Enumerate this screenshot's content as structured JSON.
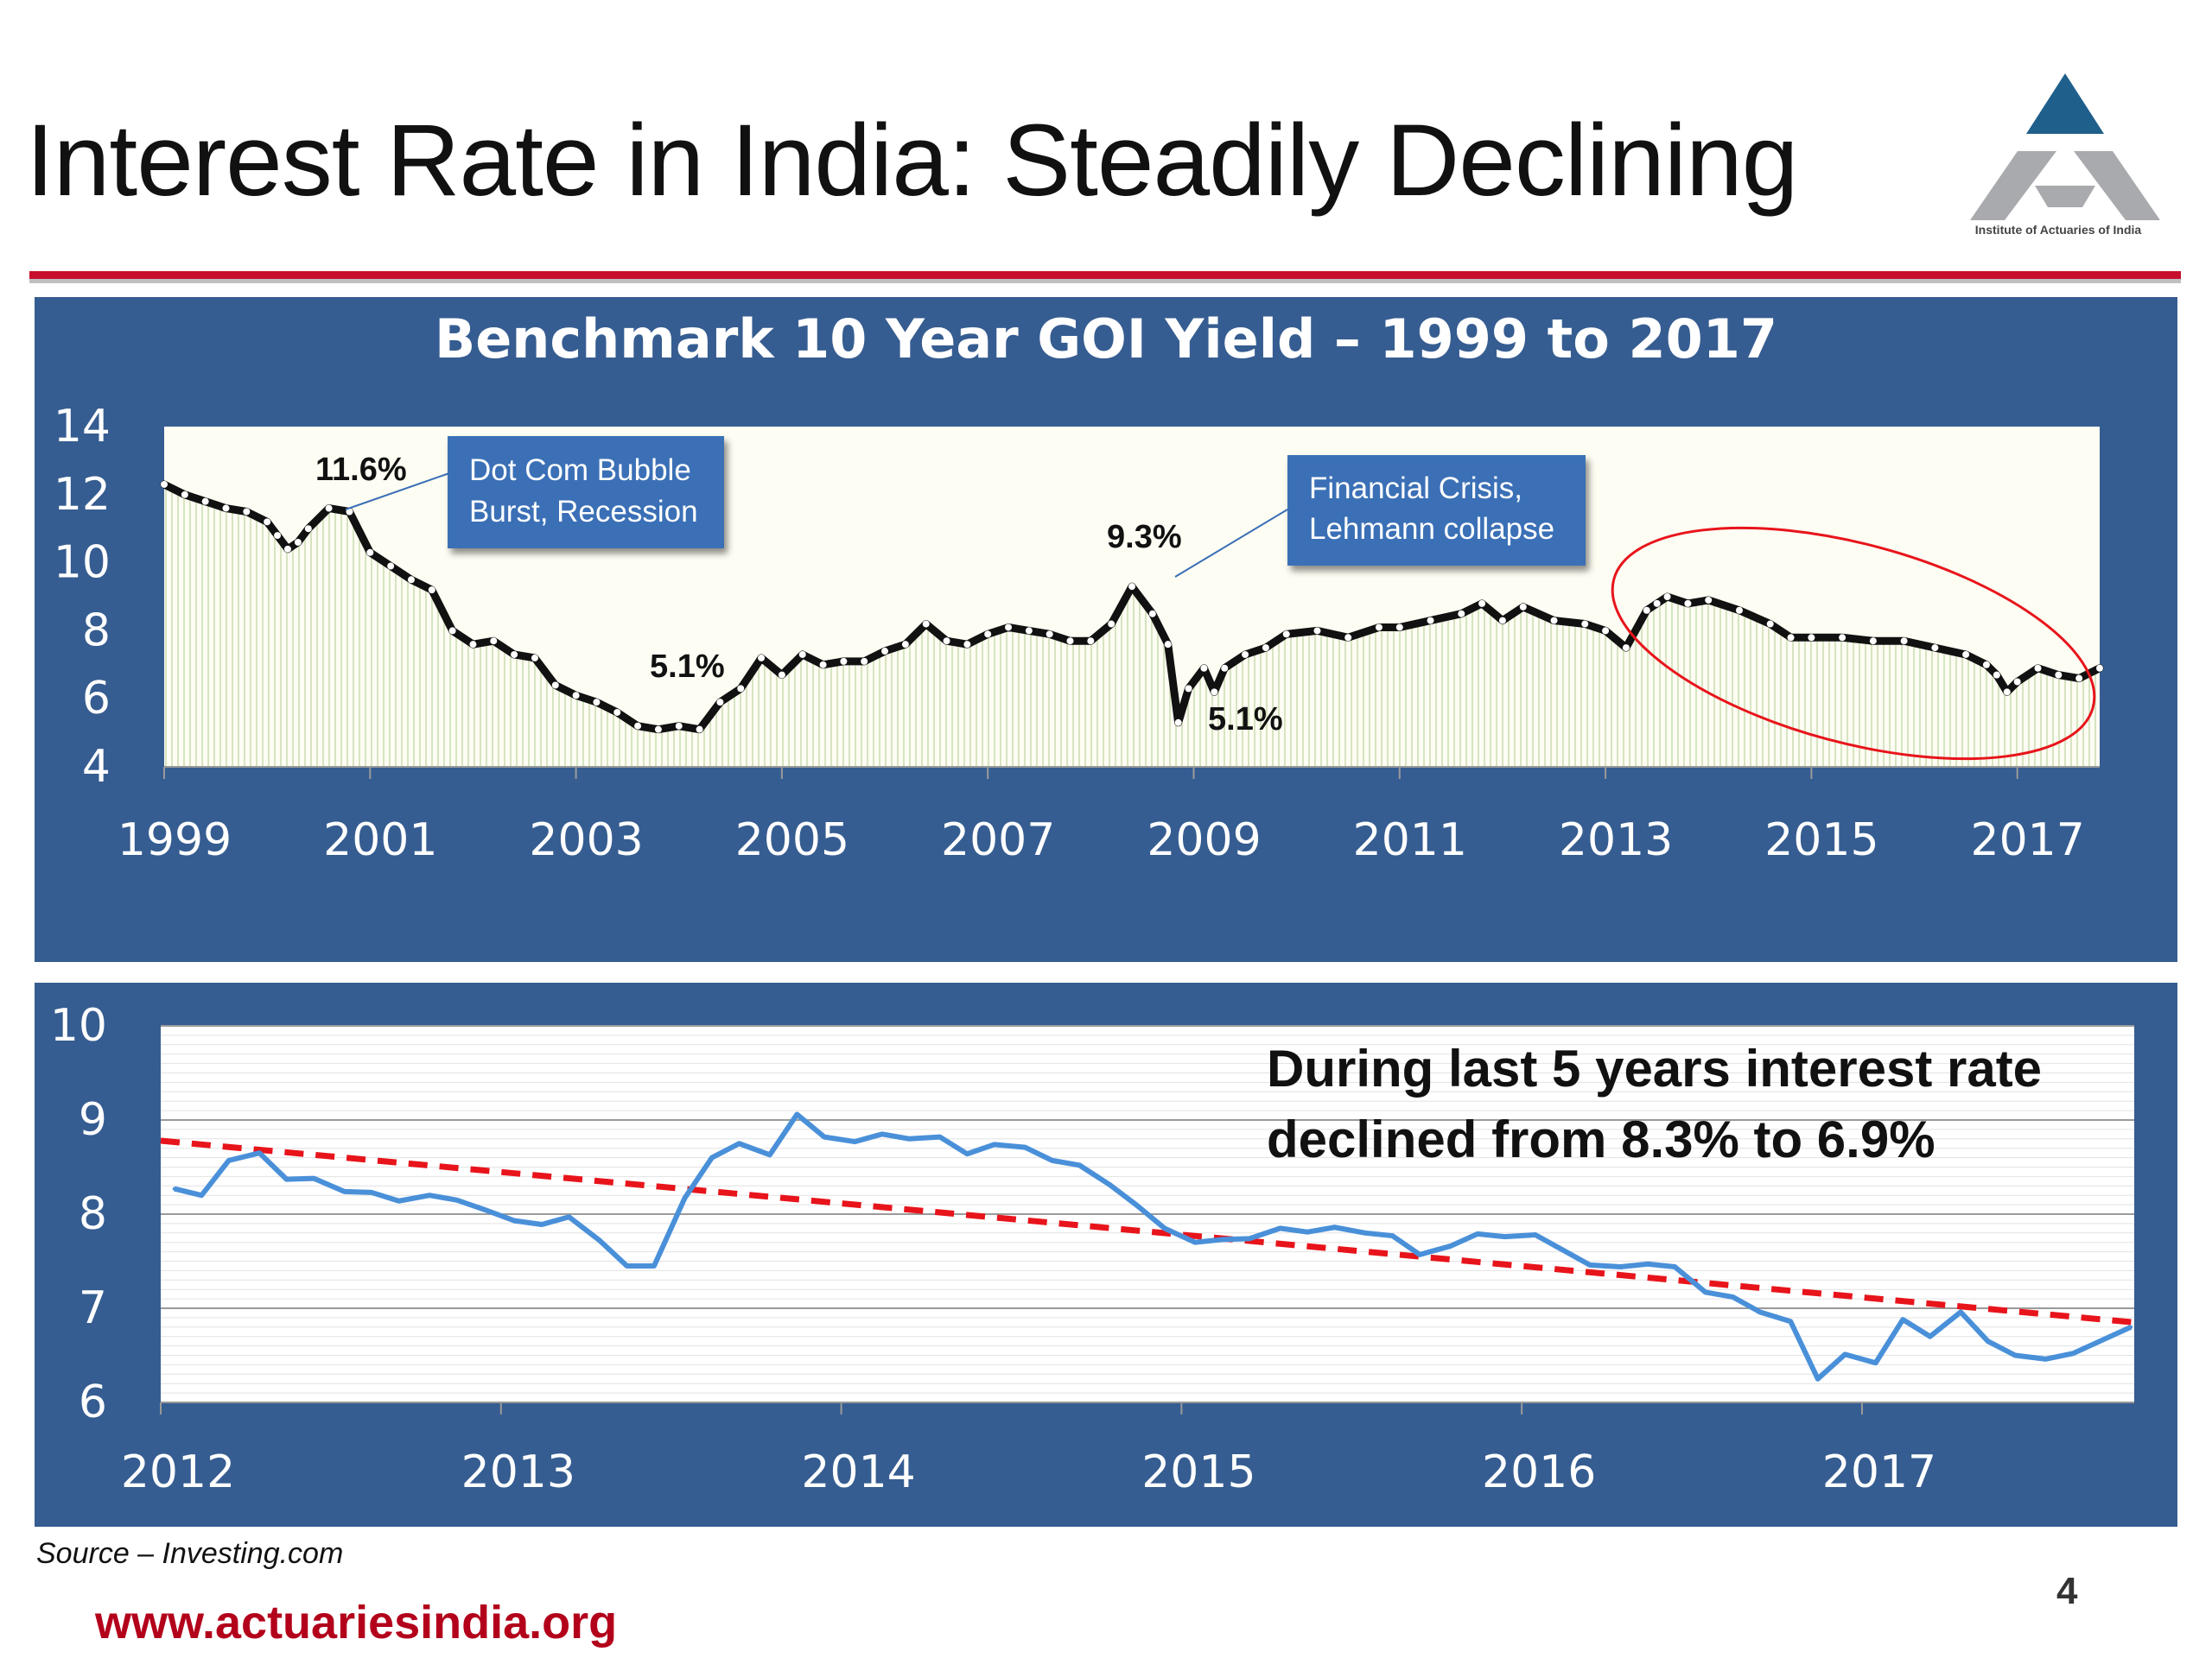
{
  "slide": {
    "title": "Interest Rate in India: Steadily Declining",
    "logo_text": "Institute of Actuaries of India",
    "source": "Source – Investing.com",
    "url": "www.actuariesindia.org",
    "page_number": "4"
  },
  "colors": {
    "panel": "#365d91",
    "rule": "#c8102e",
    "line_blue": "#4a90d9",
    "trend_red": "#e8141b",
    "callout": "#3b6fb6",
    "url_red": "#b3001b"
  },
  "chart_data": [
    {
      "type": "area",
      "title": "Benchmark 10 Year GOI Yield – 1999 to 2017",
      "xlim": [
        1999,
        2017.8
      ],
      "ylim": [
        4,
        14
      ],
      "yticks": [
        4,
        6,
        8,
        10,
        12,
        14
      ],
      "xticks": [
        1999,
        2001,
        2003,
        2005,
        2007,
        2009,
        2011,
        2013,
        2015,
        2017
      ],
      "grid": false,
      "x": [
        1999.0,
        1999.2,
        1999.4,
        1999.6,
        1999.8,
        2000.0,
        2000.1,
        2000.2,
        2000.3,
        2000.4,
        2000.6,
        2000.8,
        2001.0,
        2001.2,
        2001.4,
        2001.6,
        2001.8,
        2002.0,
        2002.2,
        2002.4,
        2002.6,
        2002.8,
        2003.0,
        2003.2,
        2003.4,
        2003.6,
        2003.8,
        2004.0,
        2004.2,
        2004.4,
        2004.6,
        2004.8,
        2005.0,
        2005.2,
        2005.4,
        2005.6,
        2005.8,
        2006.0,
        2006.2,
        2006.4,
        2006.6,
        2006.8,
        2007.0,
        2007.2,
        2007.4,
        2007.6,
        2007.8,
        2008.0,
        2008.2,
        2008.4,
        2008.6,
        2008.75,
        2008.85,
        2008.95,
        2009.1,
        2009.2,
        2009.3,
        2009.5,
        2009.7,
        2009.9,
        2010.2,
        2010.5,
        2010.8,
        2011.0,
        2011.3,
        2011.6,
        2011.8,
        2012.0,
        2012.2,
        2012.5,
        2012.8,
        2013.0,
        2013.2,
        2013.4,
        2013.5,
        2013.6,
        2013.8,
        2014.0,
        2014.3,
        2014.6,
        2014.8,
        2015.0,
        2015.3,
        2015.6,
        2015.9,
        2016.2,
        2016.5,
        2016.7,
        2016.8,
        2016.9,
        2017.0,
        2017.2,
        2017.4,
        2017.6,
        2017.8
      ],
      "y": [
        12.3,
        12.0,
        11.8,
        11.6,
        11.5,
        11.2,
        10.8,
        10.4,
        10.6,
        11.0,
        11.6,
        11.5,
        10.3,
        9.9,
        9.5,
        9.2,
        8.0,
        7.6,
        7.7,
        7.3,
        7.2,
        6.4,
        6.1,
        5.9,
        5.6,
        5.2,
        5.1,
        5.2,
        5.1,
        5.9,
        6.3,
        7.2,
        6.7,
        7.3,
        7.0,
        7.1,
        7.1,
        7.4,
        7.6,
        8.2,
        7.7,
        7.6,
        7.9,
        8.1,
        8.0,
        7.9,
        7.7,
        7.7,
        8.2,
        9.3,
        8.5,
        7.6,
        5.3,
        6.3,
        6.9,
        6.2,
        6.9,
        7.3,
        7.5,
        7.9,
        8.0,
        7.8,
        8.1,
        8.1,
        8.3,
        8.5,
        8.8,
        8.3,
        8.7,
        8.3,
        8.2,
        8.0,
        7.5,
        8.6,
        8.8,
        9.0,
        8.8,
        8.9,
        8.6,
        8.2,
        7.8,
        7.8,
        7.8,
        7.7,
        7.7,
        7.5,
        7.3,
        7.0,
        6.7,
        6.2,
        6.5,
        6.9,
        6.7,
        6.6,
        6.9
      ],
      "annotations": [
        "11.6%",
        "5.1%",
        "9.3%",
        "5.1%",
        "Dot Com Bubble Burst, Recession",
        "Financial Crisis, Lehmann collapse"
      ]
    },
    {
      "type": "line",
      "title": "",
      "xlim": [
        2012,
        2017.8
      ],
      "ylim": [
        6,
        10
      ],
      "yticks": [
        6,
        7,
        8,
        9,
        10
      ],
      "xticks": [
        2012,
        2013,
        2014,
        2015,
        2016,
        2017
      ],
      "grid": true,
      "x": [
        2012.04,
        2012.12,
        2012.2,
        2012.29,
        2012.37,
        2012.45,
        2012.54,
        2012.62,
        2012.7,
        2012.79,
        2012.87,
        2012.95,
        2013.04,
        2013.12,
        2013.2,
        2013.29,
        2013.37,
        2013.45,
        2013.54,
        2013.62,
        2013.7,
        2013.79,
        2013.87,
        2013.95,
        2014.04,
        2014.12,
        2014.2,
        2014.29,
        2014.37,
        2014.45,
        2014.54,
        2014.62,
        2014.7,
        2014.79,
        2014.87,
        2014.95,
        2015.04,
        2015.12,
        2015.2,
        2015.29,
        2015.37,
        2015.45,
        2015.54,
        2015.62,
        2015.7,
        2015.79,
        2015.87,
        2015.95,
        2016.04,
        2016.12,
        2016.2,
        2016.29,
        2016.37,
        2016.45,
        2016.54,
        2016.62,
        2016.7,
        2016.79,
        2016.87,
        2016.95,
        2017.04,
        2017.12,
        2017.2,
        2017.29,
        2017.37,
        2017.45,
        2017.54,
        2017.62,
        2017.79
      ],
      "y": [
        8.27,
        8.2,
        8.57,
        8.65,
        8.37,
        8.38,
        8.24,
        8.23,
        8.14,
        8.2,
        8.15,
        8.05,
        7.93,
        7.89,
        7.97,
        7.72,
        7.45,
        7.45,
        8.17,
        8.6,
        8.75,
        8.63,
        9.06,
        8.82,
        8.77,
        8.85,
        8.8,
        8.82,
        8.64,
        8.74,
        8.71,
        8.57,
        8.52,
        8.31,
        8.09,
        7.85,
        7.7,
        7.73,
        7.74,
        7.85,
        7.81,
        7.86,
        7.8,
        7.77,
        7.57,
        7.66,
        7.79,
        7.76,
        7.78,
        7.62,
        7.46,
        7.44,
        7.47,
        7.44,
        7.17,
        7.12,
        6.96,
        6.86,
        6.25,
        6.51,
        6.42,
        6.88,
        6.7,
        6.96,
        6.65,
        6.5,
        6.46,
        6.52,
        6.8
      ],
      "trend": {
        "y_start": 8.78,
        "y_end": 6.85
      },
      "annotation": "During last 5 years interest rate declined from 8.3% to 6.9%"
    }
  ]
}
